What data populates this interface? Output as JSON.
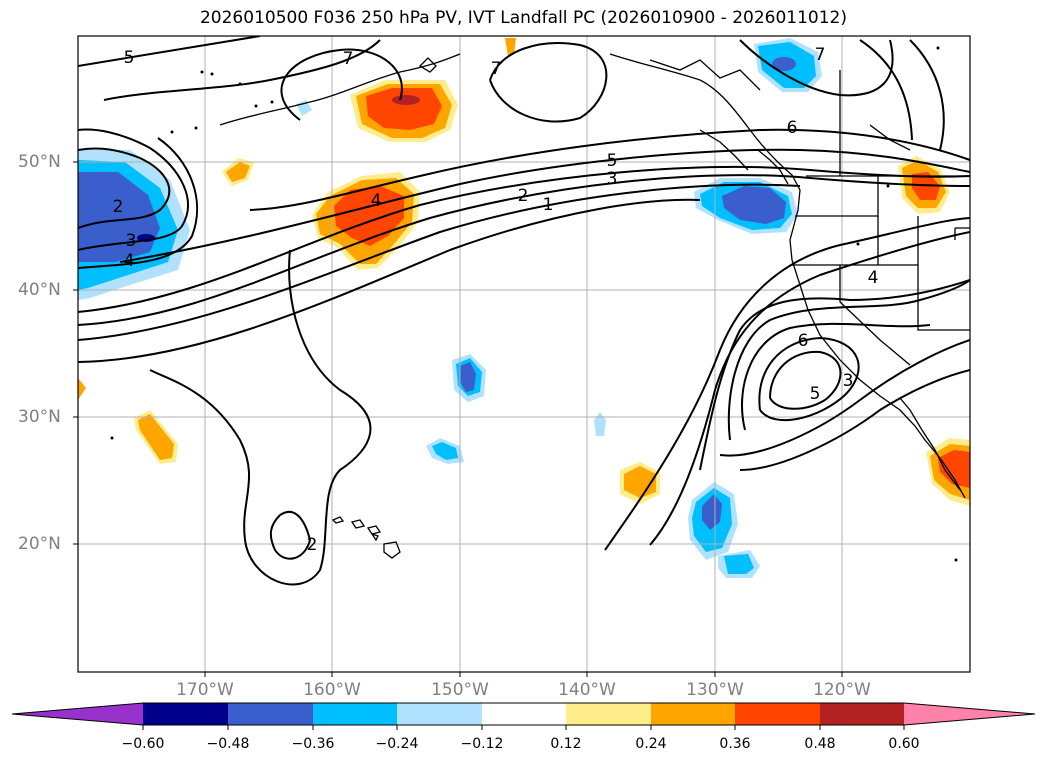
{
  "title": "2026010500 F036 250 hPa PV, IVT Landfall PC (2026010900 - 2026011012)",
  "lat_labels": [
    "50°N",
    "40°N",
    "30°N",
    "20°N"
  ],
  "lon_labels": [
    "170°W",
    "160°W",
    "150°W",
    "140°W",
    "130°W",
    "120°W"
  ],
  "contour_labels": [
    "5",
    "7",
    "7",
    "6",
    "5",
    "3",
    "2",
    "1",
    "4",
    "2",
    "3",
    "4",
    "7",
    "4",
    "6",
    "5",
    "3",
    "2"
  ],
  "colorbar": {
    "ticks": [
      "−0.60",
      "−0.48",
      "−0.36",
      "−0.24",
      "−0.12",
      "0.12",
      "0.24",
      "0.36",
      "0.48",
      "0.60"
    ],
    "colors": [
      "#9932cc",
      "#00008b",
      "#3a5fcd",
      "#00bfff",
      "#b0e2ff",
      "#ffffff",
      "#ffec8b",
      "#ffa500",
      "#ff4500",
      "#b22222",
      "#ff82ab"
    ]
  },
  "colors": {
    "coast": "#000000",
    "grid": "#b0b0b0",
    "contour": "#000000"
  }
}
